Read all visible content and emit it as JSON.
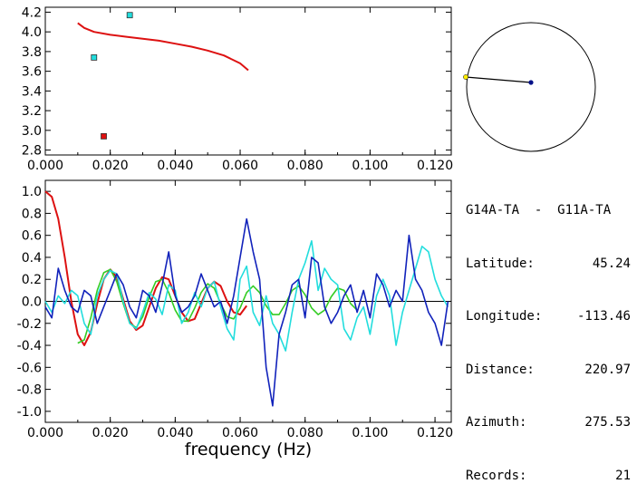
{
  "info": {
    "station_pair": "G14A-TA  -  G11A-TA",
    "rows": [
      {
        "label": "Latitude:",
        "value": "45.24"
      },
      {
        "label": "Longitude:",
        "value": "-113.46"
      },
      {
        "label": "Distance:",
        "value": "220.97"
      },
      {
        "label": "Azimuth:",
        "value": "275.53"
      },
      {
        "label": "Records:",
        "value": "21"
      }
    ]
  },
  "colors": {
    "red": "#dd1111",
    "cyan": "#22dddd",
    "green": "#33cc22",
    "blue": "#1122bb",
    "yellow": "#ffee00",
    "dark_blue": "#001188"
  },
  "chart_data": [
    {
      "type": "scatter",
      "title": "",
      "xlabel": "",
      "ylabel": "",
      "xlim": [
        0.0,
        0.125
      ],
      "ylim": [
        2.75,
        4.25
      ],
      "x_ticks": [
        "0.000",
        "0.020",
        "0.040",
        "0.060",
        "0.080",
        "0.100",
        "0.120"
      ],
      "y_ticks": [
        "2.8",
        "3.0",
        "3.2",
        "3.4",
        "3.6",
        "3.8",
        "4.0",
        "4.2"
      ],
      "series": [
        {
          "kind": "line",
          "color": "red",
          "x": [
            0.01,
            0.012,
            0.015,
            0.02,
            0.025,
            0.03,
            0.035,
            0.04,
            0.045,
            0.05,
            0.055,
            0.06,
            0.0625
          ],
          "y": [
            4.09,
            4.04,
            4.0,
            3.97,
            3.95,
            3.93,
            3.91,
            3.88,
            3.85,
            3.81,
            3.76,
            3.68,
            3.61
          ]
        },
        {
          "kind": "point",
          "color": "cyan",
          "x": [
            0.026,
            0.015
          ],
          "y": [
            4.17,
            3.74
          ]
        },
        {
          "kind": "point",
          "color": "red",
          "x": [
            0.018
          ],
          "y": [
            2.94
          ]
        }
      ]
    },
    {
      "type": "line",
      "title": "",
      "xlabel": "frequency (Hz)",
      "ylabel": "",
      "xlim": [
        0.0,
        0.125
      ],
      "ylim": [
        -1.1,
        1.1
      ],
      "x_ticks": [
        "0.000",
        "0.020",
        "0.040",
        "0.060",
        "0.080",
        "0.100",
        "0.120"
      ],
      "y_ticks": [
        "1.0",
        "0.8",
        "0.6",
        "0.4",
        "0.2",
        "0.0",
        "-0.2",
        "-0.4",
        "-0.6",
        "-0.8",
        "-1.0"
      ],
      "series": [
        {
          "color": "red",
          "x": [
            0.0,
            0.002,
            0.004,
            0.006,
            0.008,
            0.01,
            0.012,
            0.014,
            0.016,
            0.018,
            0.02,
            0.022,
            0.024,
            0.026,
            0.028,
            0.03,
            0.032,
            0.034,
            0.036,
            0.038,
            0.04,
            0.042,
            0.044,
            0.046,
            0.048,
            0.05,
            0.052,
            0.054,
            0.056,
            0.058,
            0.06,
            0.062
          ],
          "y": [
            1.0,
            0.95,
            0.75,
            0.4,
            0.0,
            -0.3,
            -0.4,
            -0.28,
            -0.02,
            0.2,
            0.29,
            0.22,
            0.02,
            -0.18,
            -0.26,
            -0.22,
            -0.05,
            0.12,
            0.22,
            0.2,
            0.05,
            -0.1,
            -0.18,
            -0.16,
            -0.02,
            0.12,
            0.18,
            0.14,
            0.0,
            -0.1,
            -0.12,
            -0.04
          ]
        },
        {
          "color": "green",
          "x": [
            0.01,
            0.012,
            0.014,
            0.016,
            0.018,
            0.02,
            0.022,
            0.024,
            0.026,
            0.028,
            0.03,
            0.032,
            0.034,
            0.036,
            0.038,
            0.04,
            0.042,
            0.044,
            0.046,
            0.048,
            0.05,
            0.052,
            0.054,
            0.056,
            0.058,
            0.06,
            0.062,
            0.064,
            0.066,
            0.068,
            0.07,
            0.072,
            0.074,
            0.076,
            0.078,
            0.08,
            0.082,
            0.084,
            0.086,
            0.088,
            0.09,
            0.092,
            0.094,
            0.096
          ],
          "y": [
            -0.38,
            -0.35,
            -0.15,
            0.1,
            0.26,
            0.29,
            0.18,
            -0.02,
            -0.2,
            -0.24,
            -0.14,
            0.04,
            0.18,
            0.2,
            0.08,
            -0.08,
            -0.18,
            -0.18,
            -0.06,
            0.08,
            0.16,
            0.12,
            -0.02,
            -0.14,
            -0.16,
            -0.06,
            0.08,
            0.14,
            0.08,
            -0.04,
            -0.12,
            -0.12,
            -0.02,
            0.1,
            0.14,
            0.06,
            -0.06,
            -0.12,
            -0.08,
            0.04,
            0.12,
            0.1,
            -0.02,
            -0.08
          ]
        },
        {
          "color": "cyan",
          "x": [
            0.0,
            0.002,
            0.004,
            0.006,
            0.008,
            0.01,
            0.012,
            0.014,
            0.016,
            0.018,
            0.02,
            0.022,
            0.024,
            0.026,
            0.028,
            0.03,
            0.032,
            0.034,
            0.036,
            0.038,
            0.04,
            0.042,
            0.044,
            0.046,
            0.048,
            0.05,
            0.052,
            0.054,
            0.056,
            0.058,
            0.06,
            0.062,
            0.064,
            0.066,
            0.068,
            0.07,
            0.072,
            0.074,
            0.076,
            0.078,
            0.08,
            0.082,
            0.084,
            0.086,
            0.088,
            0.09,
            0.092,
            0.094,
            0.096,
            0.098,
            0.1,
            0.102,
            0.104,
            0.106,
            0.108,
            0.11,
            0.112,
            0.114,
            0.116,
            0.118,
            0.12,
            0.122,
            0.124
          ],
          "y": [
            0.0,
            -0.1,
            0.05,
            -0.02,
            0.1,
            0.05,
            -0.2,
            -0.3,
            0.05,
            0.2,
            0.28,
            0.25,
            0.0,
            -0.2,
            -0.25,
            -0.1,
            0.08,
            0.02,
            -0.12,
            0.15,
            0.1,
            -0.2,
            -0.1,
            0.08,
            -0.05,
            0.12,
            0.18,
            -0.05,
            -0.25,
            -0.35,
            0.2,
            0.32,
            -0.1,
            -0.22,
            0.05,
            -0.2,
            -0.3,
            -0.45,
            -0.1,
            0.2,
            0.35,
            0.55,
            0.1,
            0.3,
            0.2,
            0.15,
            -0.25,
            -0.35,
            -0.15,
            -0.05,
            -0.3,
            0.05,
            0.2,
            0.05,
            -0.4,
            -0.1,
            0.1,
            0.3,
            0.5,
            0.45,
            0.2,
            0.05,
            -0.05
          ]
        },
        {
          "color": "blue",
          "x": [
            0.0,
            0.002,
            0.004,
            0.006,
            0.008,
            0.01,
            0.012,
            0.014,
            0.016,
            0.018,
            0.02,
            0.022,
            0.024,
            0.026,
            0.028,
            0.03,
            0.032,
            0.034,
            0.036,
            0.038,
            0.04,
            0.042,
            0.044,
            0.046,
            0.048,
            0.05,
            0.052,
            0.054,
            0.056,
            0.058,
            0.06,
            0.062,
            0.064,
            0.066,
            0.068,
            0.07,
            0.072,
            0.074,
            0.076,
            0.078,
            0.08,
            0.082,
            0.084,
            0.086,
            0.088,
            0.09,
            0.092,
            0.094,
            0.096,
            0.098,
            0.1,
            0.102,
            0.104,
            0.106,
            0.108,
            0.11,
            0.112,
            0.114,
            0.116,
            0.118,
            0.12,
            0.122,
            0.124
          ],
          "y": [
            -0.05,
            -0.15,
            0.3,
            0.1,
            -0.05,
            -0.1,
            0.1,
            0.05,
            -0.2,
            -0.05,
            0.1,
            0.25,
            0.15,
            -0.05,
            -0.15,
            0.1,
            0.05,
            -0.1,
            0.15,
            0.45,
            0.05,
            -0.1,
            -0.05,
            0.05,
            0.25,
            0.1,
            -0.05,
            0.0,
            -0.2,
            0.05,
            0.4,
            0.75,
            0.45,
            0.2,
            -0.6,
            -0.95,
            -0.3,
            -0.1,
            0.15,
            0.2,
            -0.15,
            0.4,
            0.35,
            -0.05,
            -0.2,
            -0.1,
            0.05,
            0.15,
            -0.1,
            0.1,
            -0.15,
            0.25,
            0.15,
            -0.05,
            0.1,
            0.0,
            0.6,
            0.2,
            0.1,
            -0.1,
            -0.2,
            -0.4,
            0.0
          ]
        }
      ]
    }
  ],
  "map": {
    "markers": [
      {
        "name": "source-station",
        "color": "yellow"
      },
      {
        "name": "receiver-station",
        "color": "dark_blue"
      }
    ]
  }
}
